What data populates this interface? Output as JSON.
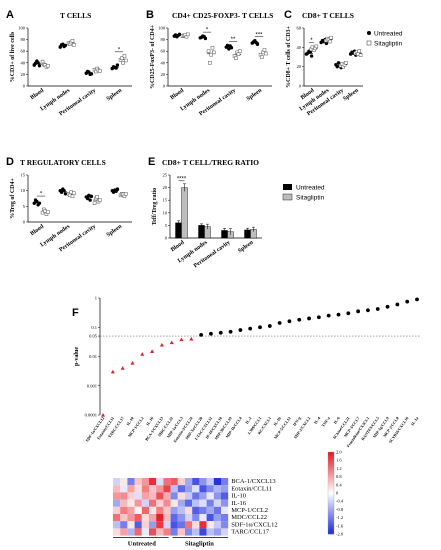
{
  "legend": {
    "untreated": "Untreated",
    "sitagliptin": "Sitagliptin"
  },
  "categories": [
    "Blood",
    "Lymph nodes",
    "Peritoneal cavity",
    "Spleen"
  ],
  "chart_data": [
    {
      "panel": "A",
      "title": "T CELLS",
      "type": "scatter",
      "ylabel": "%CD3+ of live cells",
      "ylim": [
        0,
        100
      ],
      "yticks": [
        0,
        20,
        40,
        60,
        80,
        100
      ],
      "series": [
        {
          "name": "Untreated",
          "values": [
            [
              36,
              39,
              43,
              40,
              35
            ],
            [
              67,
              71,
              72,
              68,
              70
            ],
            [
              22,
              25,
              24,
              20,
              21
            ],
            [
              30,
              33,
              32,
              31,
              36
            ]
          ]
        },
        {
          "name": "Sitagliptin",
          "values": [
            [
              42,
              37,
              36,
              33,
              35
            ],
            [
              74,
              72,
              75,
              78,
              71
            ],
            [
              28,
              25,
              30,
              27,
              26
            ],
            [
              45,
              48,
              40,
              52,
              44
            ]
          ]
        }
      ],
      "significance": [
        {
          "category": "Spleen",
          "label": "*"
        }
      ]
    },
    {
      "panel": "B",
      "title": "CD4+ CD25-FOXP3- T CELLS",
      "type": "scatter",
      "ylabel": "%CD25-FoxP3- of CD4+",
      "ylim": [
        0,
        100
      ],
      "yticks": [
        0,
        20,
        40,
        60,
        80,
        100
      ],
      "series": [
        {
          "name": "Untreated",
          "values": [
            [
              86,
              88,
              85,
              87,
              89
            ],
            [
              83,
              84,
              86,
              85,
              82
            ],
            [
              67,
              70,
              64,
              69,
              66
            ],
            [
              74,
              76,
              78,
              75,
              72
            ]
          ]
        },
        {
          "name": "Sitagliptin",
          "values": [
            [
              86,
              87,
              88,
              85,
              89
            ],
            [
              60,
              40,
              54,
              66,
              58
            ],
            [
              52,
              48,
              58,
              55,
              60
            ],
            [
              54,
              50,
              58,
              62,
              56
            ]
          ]
        }
      ],
      "significance": [
        {
          "category": "Lymph nodes",
          "label": "*"
        },
        {
          "category": "Peritoneal cavity",
          "label": "**"
        },
        {
          "category": "Spleen",
          "label": "***"
        }
      ]
    },
    {
      "panel": "C",
      "title": "CD8+ T CELLS",
      "type": "scatter",
      "ylabel": "%CD8+ T cells of CD3+",
      "ylim": [
        0,
        60
      ],
      "yticks": [
        0,
        20,
        40,
        60
      ],
      "series": [
        {
          "name": "Untreated",
          "values": [
            [
              33,
              34,
              36,
              35,
              31
            ],
            [
              45,
              47,
              46,
              48,
              44
            ],
            [
              22,
              20,
              24,
              21,
              19
            ],
            [
              33,
              35,
              34,
              36,
              32
            ]
          ]
        },
        {
          "name": "Sitagliptin",
          "values": [
            [
              38,
              40,
              37,
              39,
              41
            ],
            [
              47,
              49,
              48,
              46,
              50
            ],
            [
              21,
              23,
              20,
              22,
              24
            ],
            [
              34,
              35,
              33,
              36,
              32
            ]
          ]
        }
      ],
      "significance": [
        {
          "category": "Blood",
          "label": "*"
        }
      ]
    },
    {
      "panel": "D",
      "title": "T REGULATORY CELLS",
      "type": "scatter",
      "ylabel": "%Treg of CD4+",
      "ylim": [
        0,
        15
      ],
      "yticks": [
        0,
        5,
        10,
        15
      ],
      "series": [
        {
          "name": "Untreated",
          "values": [
            [
              6,
              7,
              6.5,
              5.5,
              6
            ],
            [
              10,
              9.5,
              10.5,
              10,
              9
            ],
            [
              8,
              7.5,
              8.5,
              7,
              8.2
            ],
            [
              10,
              9.5,
              10.2,
              9.8,
              10.5
            ]
          ]
        },
        {
          "name": "Sitagliptin",
          "values": [
            [
              3,
              4,
              3.5,
              2.5,
              3.2
            ],
            [
              9,
              8.5,
              9.5,
              8.2,
              9.2
            ],
            [
              6,
              7.5,
              8,
              6.5,
              7
            ],
            [
              8.5,
              9,
              8.8,
              8.2,
              9
            ]
          ]
        }
      ],
      "significance": [
        {
          "category": "Blood",
          "label": "*"
        }
      ]
    },
    {
      "panel": "E",
      "title": "CD8+ T CELL/TREG RATIO",
      "type": "bar",
      "ylabel": "Teff/Treg ratio",
      "ylim": [
        0,
        25
      ],
      "yticks": [
        0,
        5,
        10,
        15,
        20,
        25
      ],
      "series": [
        {
          "name": "Untreated",
          "values": [
            6,
            5,
            3,
            3.2
          ],
          "errors": [
            0.8,
            0.6,
            0.8,
            0.7
          ]
        },
        {
          "name": "Sitagliptin",
          "values": [
            20,
            4.5,
            2.5,
            3.4
          ],
          "errors": [
            1.5,
            1,
            1.2,
            0.9
          ]
        }
      ],
      "significance": [
        {
          "category": "Blood",
          "label": "****"
        }
      ]
    },
    {
      "panel": "F",
      "type": "scatter",
      "ylabel": "p-value",
      "log_scale": true,
      "yticks": [
        0.0001,
        0.001,
        0.01,
        0.05,
        0.1,
        1
      ],
      "ytick_labels": [
        "0.0001",
        "0.001",
        "0.01",
        "0.05",
        "0.1",
        "1"
      ],
      "threshold": 0.05,
      "x": [
        "SDF-1a/CXCL12",
        "Eotaxin/CCL11",
        "TARC/CCL17",
        "IL-10",
        "MCP-1/CCL2",
        "IL-16",
        "BCA-1/CXCL13",
        "MDC/CCL22",
        "MIP-1a/CCL3",
        "Eotaxin-2/CCL24",
        "MIP-3a/CCL20",
        "I-TAC/CXCL11",
        "IP-10/CXCL10",
        "MIP-3b/CCL19",
        "MIP-1b/CCL4",
        "IL-2",
        "I-309/CCL1",
        "KC/CXCL1",
        "IL-1b",
        "MCP-5/CCL12",
        "IFN-g",
        "MIP-2/CXCL2",
        "IL-4",
        "TNF-a",
        "IL-6",
        "6Ckine/CCL21",
        "MCP-3/CCL7",
        "Fractalkine/CX3CL1",
        "RANTES/CCL5",
        "MIP-1g/CCL9",
        "MCP-2/CCL8",
        "SCYB16/CXCL16",
        "IL-1a"
      ],
      "y": [
        0.0001,
        0.003,
        0.004,
        0.006,
        0.012,
        0.015,
        0.025,
        0.03,
        0.038,
        0.04,
        0.055,
        0.06,
        0.065,
        0.07,
        0.08,
        0.09,
        0.1,
        0.11,
        0.14,
        0.16,
        0.18,
        0.2,
        0.22,
        0.25,
        0.27,
        0.3,
        0.35,
        0.38,
        0.42,
        0.5,
        0.6,
        0.75,
        0.9
      ],
      "significant_count": 10
    },
    {
      "panel": "F-heatmap",
      "type": "heatmap",
      "rows": [
        "BCA-1/CXCL13",
        "Eotaxin/CCL11",
        "IL-10",
        "IL-16",
        "MCP-1/CCL2",
        "MDC/CCL22",
        "SDF-1α/CXCL12",
        "TARC/CCL17"
      ],
      "groups": [
        "Untreated",
        "Sitagliptin"
      ],
      "colorbar": {
        "min": -2.0,
        "max": 2.0,
        "ticks": [
          "2.0",
          "1.6",
          "1.2",
          "0.8",
          "0.4",
          "0",
          "-0.4",
          "-0.8",
          "-1.2",
          "-1.6",
          "-2.0"
        ]
      },
      "values": [
        [
          -0.4,
          0.2,
          -1.2,
          0.5,
          0.9,
          1.8,
          -0.3,
          1.2,
          1.4,
          0.4,
          -0.8,
          -1.6,
          -1.0,
          -0.5,
          -1.9,
          -1.2
        ],
        [
          0.6,
          -0.2,
          0.8,
          0.3,
          1.1,
          0.5,
          0.9,
          1.6,
          -0.6,
          -1.4,
          -0.9,
          -0.3,
          -1.6,
          -1.1,
          -0.7,
          -0.9
        ],
        [
          0.9,
          1.0,
          0.4,
          -0.3,
          0.8,
          0.6,
          1.5,
          0.7,
          -1.1,
          0.3,
          -0.5,
          -1.3,
          -0.9,
          -0.2,
          -1.0,
          -1.5
        ],
        [
          -0.8,
          0.6,
          0.2,
          0.9,
          -0.4,
          1.2,
          0.4,
          1.0,
          0.2,
          -0.8,
          -1.4,
          -0.6,
          -0.3,
          -1.2,
          -0.4,
          -1.0
        ],
        [
          0.4,
          1.1,
          0.8,
          0.1,
          1.3,
          0.2,
          1.1,
          0.5,
          -0.9,
          -0.6,
          0.3,
          -1.5,
          -1.2,
          -0.8,
          -1.3,
          -0.2
        ],
        [
          1.2,
          0.5,
          0.9,
          1.4,
          0.3,
          0.8,
          1.9,
          0.6,
          -1.4,
          -1.0,
          -0.4,
          -1.1,
          -0.2,
          -1.6,
          -0.9,
          -1.2
        ],
        [
          -0.6,
          -1.2,
          0.2,
          -1.5,
          0.4,
          -0.9,
          1.7,
          -0.4,
          -1.6,
          -1.3,
          1.2,
          0.3,
          1.8,
          0.2,
          -0.5,
          -1.1
        ],
        [
          0.3,
          0.8,
          -0.7,
          1.3,
          -0.2,
          1.5,
          0.6,
          1.1,
          -1.2,
          0.5,
          -1.1,
          -0.6,
          -1.7,
          -0.6,
          -0.9,
          -0.4
        ]
      ]
    }
  ]
}
